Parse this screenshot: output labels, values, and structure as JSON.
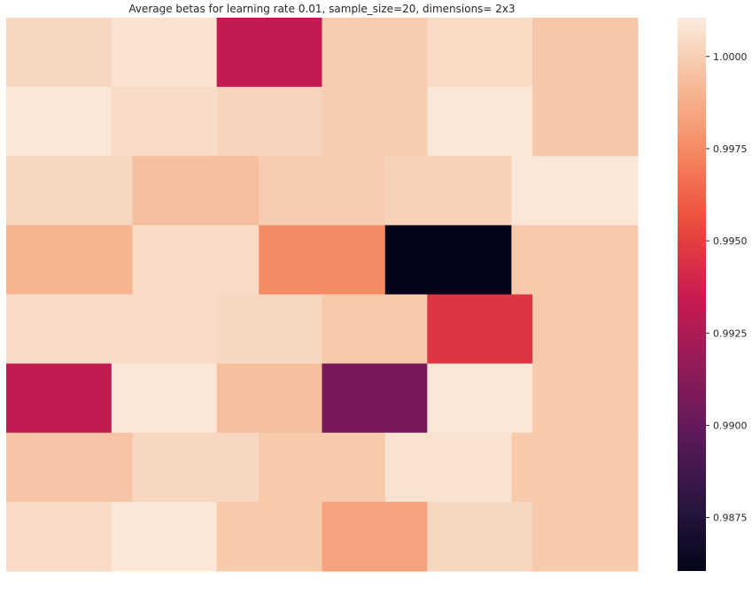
{
  "chart_data": {
    "type": "heatmap",
    "title": "Average betas for learning rate 0.01, sample_size=20, dimensions= 2x3",
    "xlabel": "",
    "ylabel": "",
    "grid": false,
    "colormap": "rocket",
    "colorbar": {
      "vmin": 0.98605,
      "vmax": 1.00105,
      "ticks": [
        0.9875,
        0.99,
        0.9925,
        0.995,
        0.9975,
        1.0
      ],
      "tick_labels": [
        "0.9875",
        "0.9900",
        "0.9925",
        "0.9950",
        "0.9975",
        "1.0000"
      ]
    },
    "rows": [
      {
        "segments": [
          {
            "span": 1,
            "value": 1.0003
          },
          {
            "span": 1,
            "value": 1.0007
          },
          {
            "span": 1,
            "value": 0.9932
          },
          {
            "span": 1,
            "value": 0.9999
          },
          {
            "span": 1,
            "value": 1.0004
          },
          {
            "span": 1,
            "value": 0.9997
          }
        ]
      },
      {
        "segments": [
          {
            "span": 1,
            "value": 1.0009
          },
          {
            "span": 1,
            "value": 1.0005
          },
          {
            "span": 1,
            "value": 1.0002
          },
          {
            "span": 1,
            "value": 0.9999
          },
          {
            "span": 1,
            "value": 1.0009
          },
          {
            "span": 1,
            "value": 0.9997
          }
        ]
      },
      {
        "segments": [
          {
            "span": 1,
            "value": 1.0003
          },
          {
            "span": 1,
            "value": 0.9994
          },
          {
            "span": 1,
            "value": 0.9999
          },
          {
            "span": 1,
            "value": 1.0001
          },
          {
            "span": 1,
            "value": 1.0009
          }
        ]
      },
      {
        "segments": [
          {
            "span": 1,
            "value": 0.999
          },
          {
            "span": 1,
            "value": 1.0005
          },
          {
            "span": 1,
            "value": 0.9975
          },
          {
            "span": 1,
            "value": 0.9861
          },
          {
            "span": 1,
            "value": 0.9998
          }
        ]
      },
      {
        "segments": [
          {
            "span": 1,
            "value": 1.0005
          },
          {
            "span": 1,
            "value": 1.0005
          },
          {
            "span": 1,
            "value": 1.0003
          },
          {
            "span": 1,
            "value": 0.9998
          },
          {
            "span": 1,
            "value": 0.9946
          },
          {
            "span": 1,
            "value": 0.9998
          }
        ]
      },
      {
        "segments": [
          {
            "span": 1,
            "value": 0.9932
          },
          {
            "span": 1,
            "value": 1.0009
          },
          {
            "span": 1,
            "value": 0.9994
          },
          {
            "span": 1,
            "value": 0.9907
          },
          {
            "span": 1,
            "value": 1.0009
          },
          {
            "span": 1,
            "value": 0.9998
          }
        ]
      },
      {
        "segments": [
          {
            "span": 1,
            "value": 0.9996
          },
          {
            "span": 1,
            "value": 1.0003
          },
          {
            "span": 1,
            "value": 0.9998
          },
          {
            "span": 1,
            "value": 1.0007
          },
          {
            "span": 1,
            "value": 0.9998
          }
        ]
      },
      {
        "segments": [
          {
            "span": 1,
            "value": 1.0005
          },
          {
            "span": 1,
            "value": 1.0009
          },
          {
            "span": 1,
            "value": 0.9998
          },
          {
            "span": 1,
            "value": 0.9984
          },
          {
            "span": 1,
            "value": 1.0003
          },
          {
            "span": 1,
            "value": 0.9998
          }
        ]
      }
    ]
  }
}
